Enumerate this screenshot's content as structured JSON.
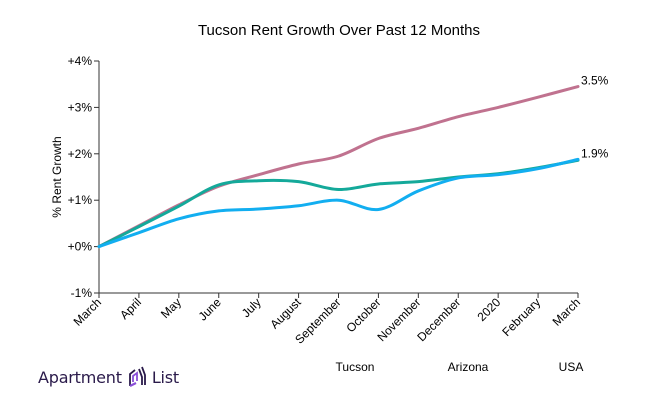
{
  "chart_data": {
    "type": "line",
    "title": "Tucson Rent Growth Over Past 12 Months",
    "xlabel": "",
    "ylabel": "% Rent Growth",
    "ylim": [
      -1,
      4
    ],
    "yticks": [
      "-1%",
      "+0%",
      "+1%",
      "+2%",
      "+3%",
      "+4%"
    ],
    "ytick_values": [
      -1,
      0,
      1,
      2,
      3,
      4
    ],
    "categories": [
      "March",
      "April",
      "May",
      "June",
      "July",
      "August",
      "September",
      "October",
      "November",
      "December",
      "2020",
      "February",
      "March"
    ],
    "grid": false,
    "legend_position": "bottom",
    "series": [
      {
        "name": "USA",
        "color": "#c0728f",
        "values": [
          0,
          0.45,
          0.9,
          1.3,
          1.55,
          1.78,
          1.95,
          2.33,
          2.55,
          2.8,
          3.0,
          3.22,
          3.45
        ],
        "end_label": "3.5%"
      },
      {
        "name": "Arizona",
        "color": "#14a99a",
        "values": [
          0,
          0.43,
          0.87,
          1.33,
          1.42,
          1.4,
          1.23,
          1.35,
          1.4,
          1.5,
          1.57,
          1.7,
          1.86
        ],
        "end_label": ""
      },
      {
        "name": "Tucson",
        "color": "#12aef0",
        "values": [
          0,
          0.3,
          0.6,
          0.77,
          0.81,
          0.88,
          1.0,
          0.8,
          1.2,
          1.48,
          1.55,
          1.68,
          1.88
        ],
        "end_label": "1.9%"
      }
    ],
    "legend": [
      "Tucson",
      "Arizona",
      "USA"
    ]
  },
  "branding": {
    "left": "Apartment",
    "right": "List"
  }
}
